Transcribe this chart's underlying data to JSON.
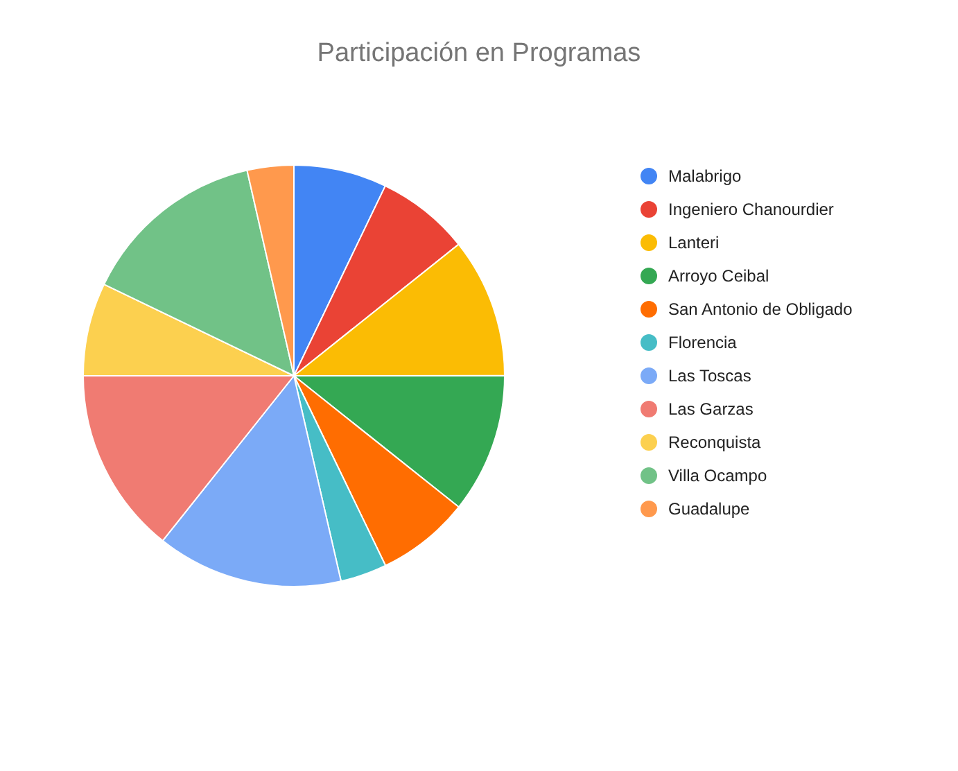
{
  "chart_data": {
    "type": "pie",
    "title": "Participación en Programas",
    "categories": [
      "Malabrigo",
      "Ingeniero Chanourdier",
      "Lanteri",
      "Arroyo Ceibal",
      "San Antonio de Obligado",
      "Florencia",
      "Las Toscas",
      "Las Garzas",
      "Reconquista",
      "Villa Ocampo",
      "Guadalupe"
    ],
    "values": [
      7.14,
      7.14,
      10.71,
      10.71,
      7.14,
      3.57,
      14.29,
      14.3,
      7.14,
      14.29,
      3.57
    ],
    "colors": [
      "#4285f4",
      "#ea4335",
      "#fbbc04",
      "#34a853",
      "#ff6d01",
      "#46bdc6",
      "#7baaf7",
      "#f07b72",
      "#fcd04f",
      "#71c287",
      "#ff994d"
    ],
    "legend": "right"
  }
}
